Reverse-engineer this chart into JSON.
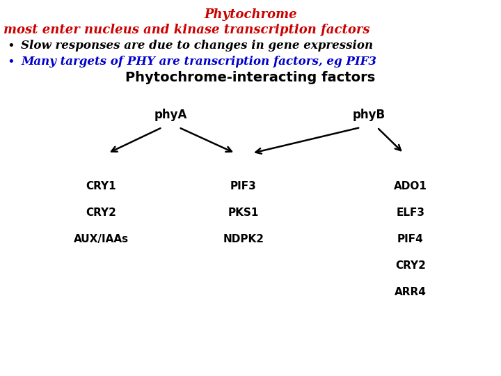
{
  "title_line1": "Phytochrome",
  "title_line2": "most enter nucleus and kinase transcription factors",
  "bullet1": "Slow responses are due to changes in gene expression",
  "bullet2": "Many targets of PHY are transcription factors, eg PIF3",
  "title_color": "#cc0000",
  "bullet1_color": "#000000",
  "bullet2_color": "#0000cc",
  "diagram_title": "Phytochrome-interacting factors",
  "node_phyA": "phyA",
  "node_phyB": "phyB",
  "left_targets": [
    "CRY1",
    "CRY2",
    "AUX/IAAs"
  ],
  "center_targets": [
    "PIF3",
    "PKS1",
    "NDPK2"
  ],
  "right_targets": [
    "ADO1",
    "ELF3",
    "PIF4",
    "CRY2",
    "ARR4"
  ],
  "bg_color": "#ffffff"
}
